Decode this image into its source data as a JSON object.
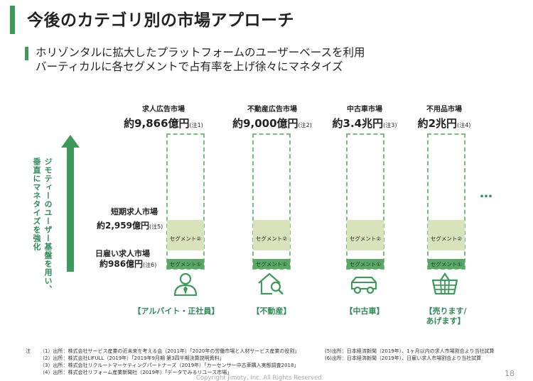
{
  "title": "今後のカテゴリ別の市場アプローチ",
  "subtitle": {
    "line1": "ホリゾンタルに拡大したプラットフォームのユーザーベースを利用",
    "line2": "バーティカルに各セグメントで占有率を上げ徐々にマネタイズ"
  },
  "vertical_text": {
    "line1": "ジモティーのユーザー基盤を用い、",
    "line2": "垂直にマネタイズを強化"
  },
  "side_labels": {
    "short_term": {
      "name": "短期求人市場",
      "value": "約2,959億円",
      "note": "(注5)"
    },
    "daily": {
      "name": "日雇い求人市場",
      "value": "約986億円",
      "note": "(注6)"
    }
  },
  "columns": [
    {
      "name": "求人広告市場",
      "value": "約9,866億円",
      "note": "(注1)",
      "seg2": "セグメント②",
      "seg1": "セグメント①",
      "icon": "job-person-icon",
      "category": "【アルバイト・正社員】"
    },
    {
      "name": "不動産広告市場",
      "value": "約9,000億円",
      "note": "(注2)",
      "seg2": "セグメント②",
      "seg1": "セグメント①",
      "icon": "house-search-icon",
      "category": "【不動産】"
    },
    {
      "name": "中古車市場",
      "value": "約3.4兆円",
      "note": "(注3)",
      "seg2": "セグメント②",
      "seg1": "セグメント①",
      "icon": "car-icon",
      "category": "【中古車】"
    },
    {
      "name": "不用品市場",
      "value": "約2兆円",
      "note": "(注4)",
      "seg2": "セグメント②",
      "seg1": "セグメント①",
      "icon": "basket-icon",
      "category_line1": "【売ります/",
      "category_line2": "あげます】"
    }
  ],
  "ellipsis": "…",
  "notes": {
    "label": "注",
    "n1": "（1）出所：株式会社サービス産業の近未来を考える会（2011年）「2020年の労働市場と人材サービス産業の役割」",
    "n2": "（2）出所：株式会社LIFULL（2019年）「2019年9月期 第3四半期決算説明資料」",
    "n3": "（3）出所：株式会社リクルートマーケティングパートナーズ（2019年）「カーセンサー中古車購入実態調査2018」",
    "n4": "（4）出所：株式会社リフォーム産業新聞社（2019年）「データでみるリユース市場」",
    "n5": "(5)出所：日本経済新聞（2019年）、1ヶ月以内の求人市場割合より当社試算",
    "n6": "(6)出所：日本経済新聞（2019年）、日雇い求人市場割合より当社試算"
  },
  "page_number": "18",
  "copyright": "Copyright Jimoty, Inc. All Rights Reserved.",
  "colors": {
    "accent": "#3e9a5a",
    "seg2": "#d8e3bc",
    "seg1": "#5aa866"
  }
}
